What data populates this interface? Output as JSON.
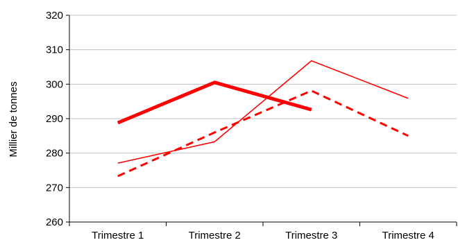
{
  "chart_data": {
    "type": "line",
    "title": "",
    "xlabel": "",
    "ylabel": "Millier de tonnes",
    "categories": [
      "Trimestre 1",
      "Trimestre 2",
      "Trimestre 3",
      "Trimestre 4"
    ],
    "ylim": [
      260,
      320
    ],
    "yticks": [
      260,
      270,
      280,
      290,
      300,
      310,
      320
    ],
    "grid": true,
    "legend": "none",
    "series": [
      {
        "style": "thick-solid",
        "color": "#ff0000",
        "values": [
          288.8,
          300.5,
          292.6,
          null
        ]
      },
      {
        "style": "thin-solid",
        "color": "#ff0000",
        "values": [
          277.1,
          283.3,
          306.8,
          295.9
        ]
      },
      {
        "style": "dashed",
        "color": "#ff0000",
        "values": [
          273.3,
          286.0,
          298.1,
          285.0
        ]
      }
    ]
  },
  "colors": {
    "title": "#0000ff",
    "grid": "#c0c0c0",
    "axis": "#000000"
  }
}
